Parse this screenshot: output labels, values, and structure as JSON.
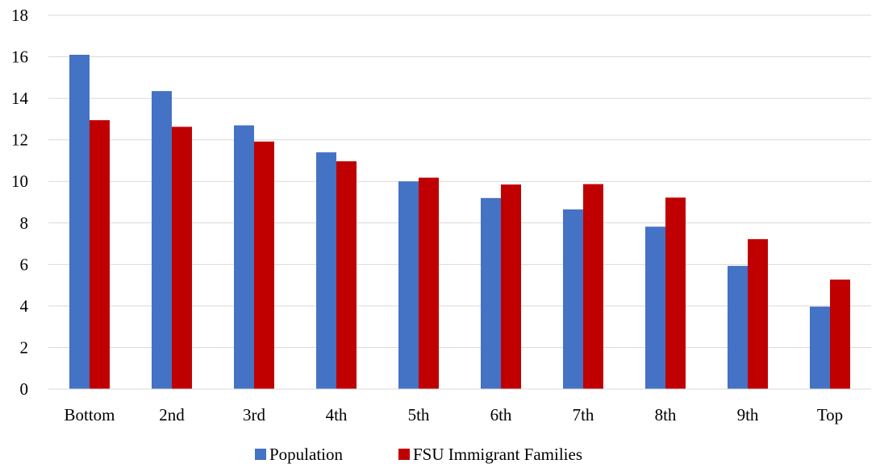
{
  "chart_data": {
    "type": "bar",
    "title": "",
    "xlabel": "",
    "ylabel": "",
    "ylim": [
      0,
      18
    ],
    "yticks": [
      0,
      2,
      4,
      6,
      8,
      10,
      12,
      14,
      16,
      18
    ],
    "grid": true,
    "legend_position": "bottom",
    "categories": [
      "Bottom",
      "2nd",
      "3rd",
      "4th",
      "5th",
      "6th",
      "7th",
      "8th",
      "9th",
      "Top"
    ],
    "series": [
      {
        "name": "Population",
        "color": "#4472c4",
        "values": [
          16.1,
          14.35,
          12.7,
          11.4,
          10.0,
          9.2,
          8.65,
          7.82,
          5.93,
          3.97
        ]
      },
      {
        "name": "FSU Immigrant Families",
        "color": "#c00000",
        "values": [
          12.95,
          12.63,
          11.92,
          10.97,
          10.18,
          9.85,
          9.87,
          9.22,
          7.22,
          5.27
        ]
      }
    ]
  }
}
